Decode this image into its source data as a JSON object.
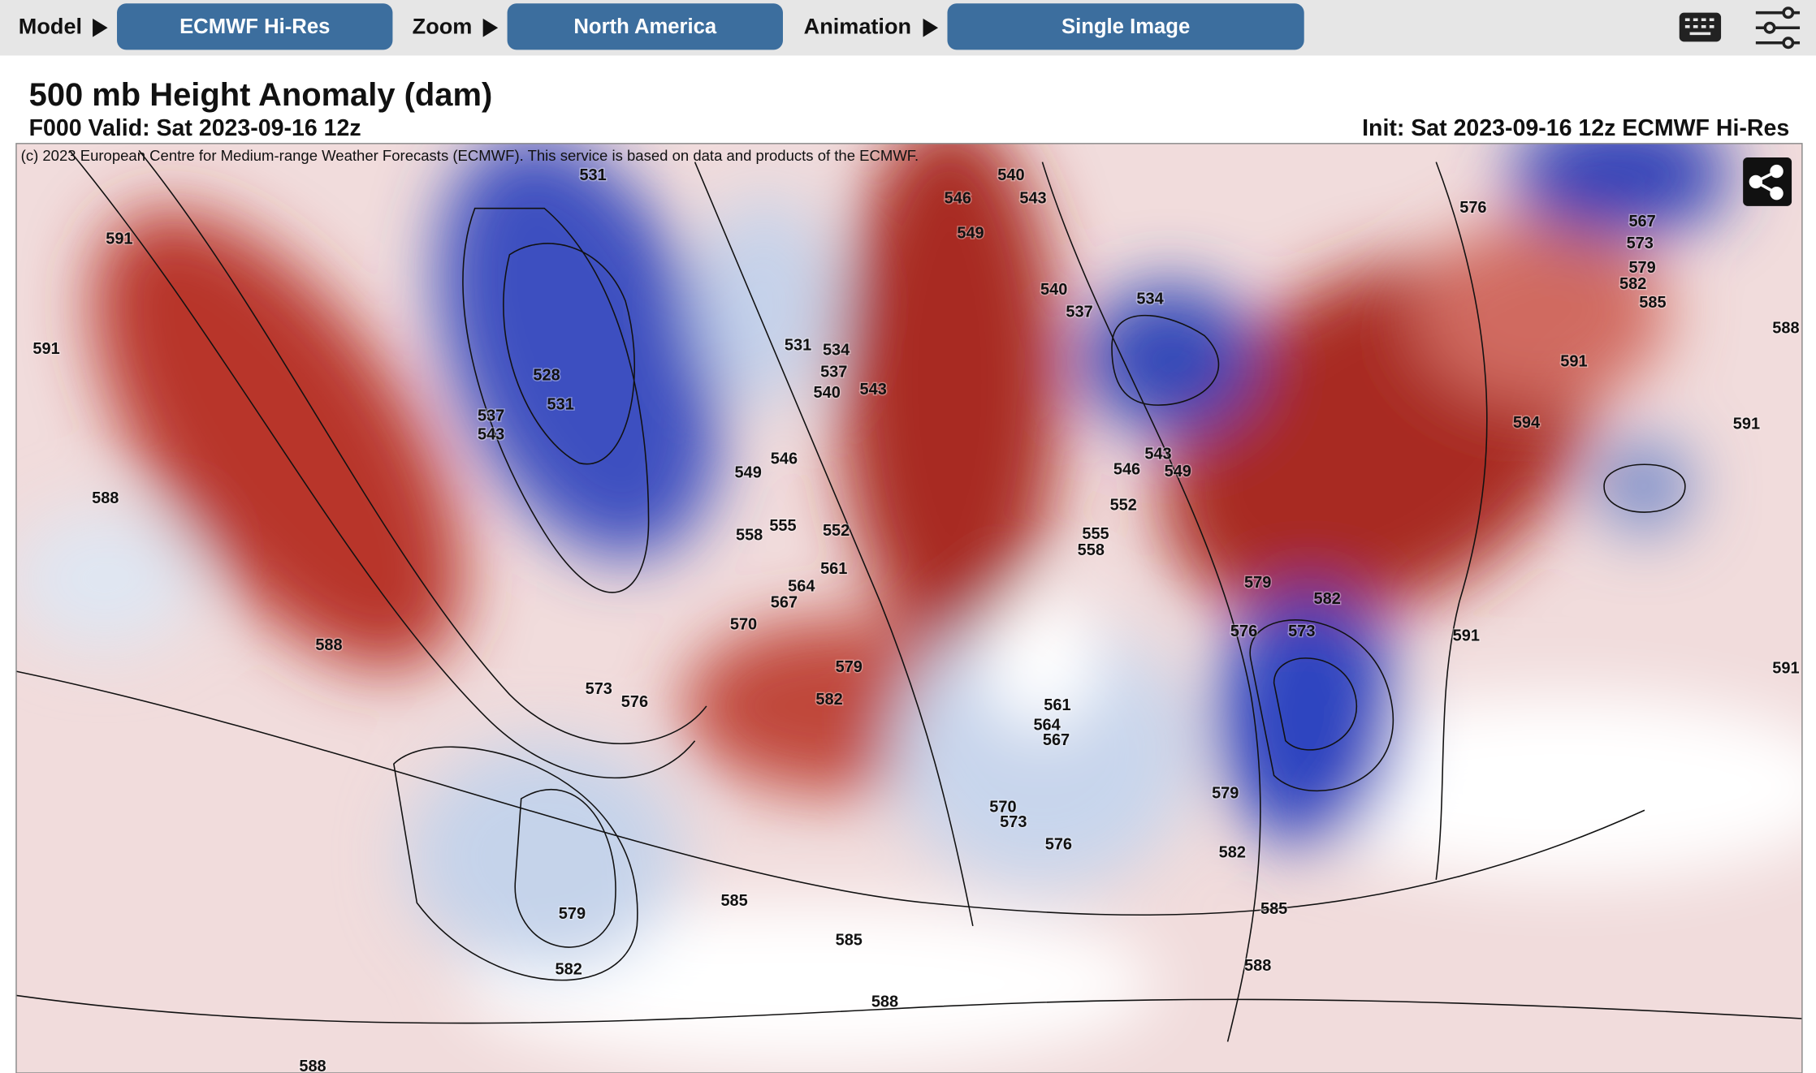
{
  "toolbar": {
    "model_label": "Model",
    "model": "ECMWF Hi-Res",
    "zoom_label": "Zoom",
    "zoom": "North America",
    "animation_label": "Animation",
    "animation": "Single Image"
  },
  "header": {
    "title": "500 mb Height Anomaly (dam)",
    "valid": "F000 Valid: Sat 2023-09-16 12z",
    "init": "Init: Sat 2023-09-16 12z ECMWF Hi-Res"
  },
  "map": {
    "copyright": "(c) 2023 European Centre for Medium-range Weather Forecasts (ECMWF). This service is based on data and products of the ECMWF.",
    "contour_labels": [
      531,
      591,
      591,
      546,
      549,
      540,
      543,
      576,
      567,
      573,
      579,
      582,
      585,
      588,
      540,
      537,
      534,
      531,
      534,
      537,
      540,
      543,
      528,
      531,
      537,
      543,
      591,
      594,
      591,
      588,
      549,
      546,
      543,
      546,
      549,
      552,
      555,
      558,
      558,
      555,
      552,
      561,
      564,
      567,
      570,
      579,
      582,
      576,
      573,
      591,
      591,
      588,
      573,
      576,
      579,
      582,
      561,
      564,
      567,
      570,
      573,
      576,
      579,
      582,
      585,
      579,
      582,
      585,
      585,
      588,
      588,
      588
    ]
  }
}
